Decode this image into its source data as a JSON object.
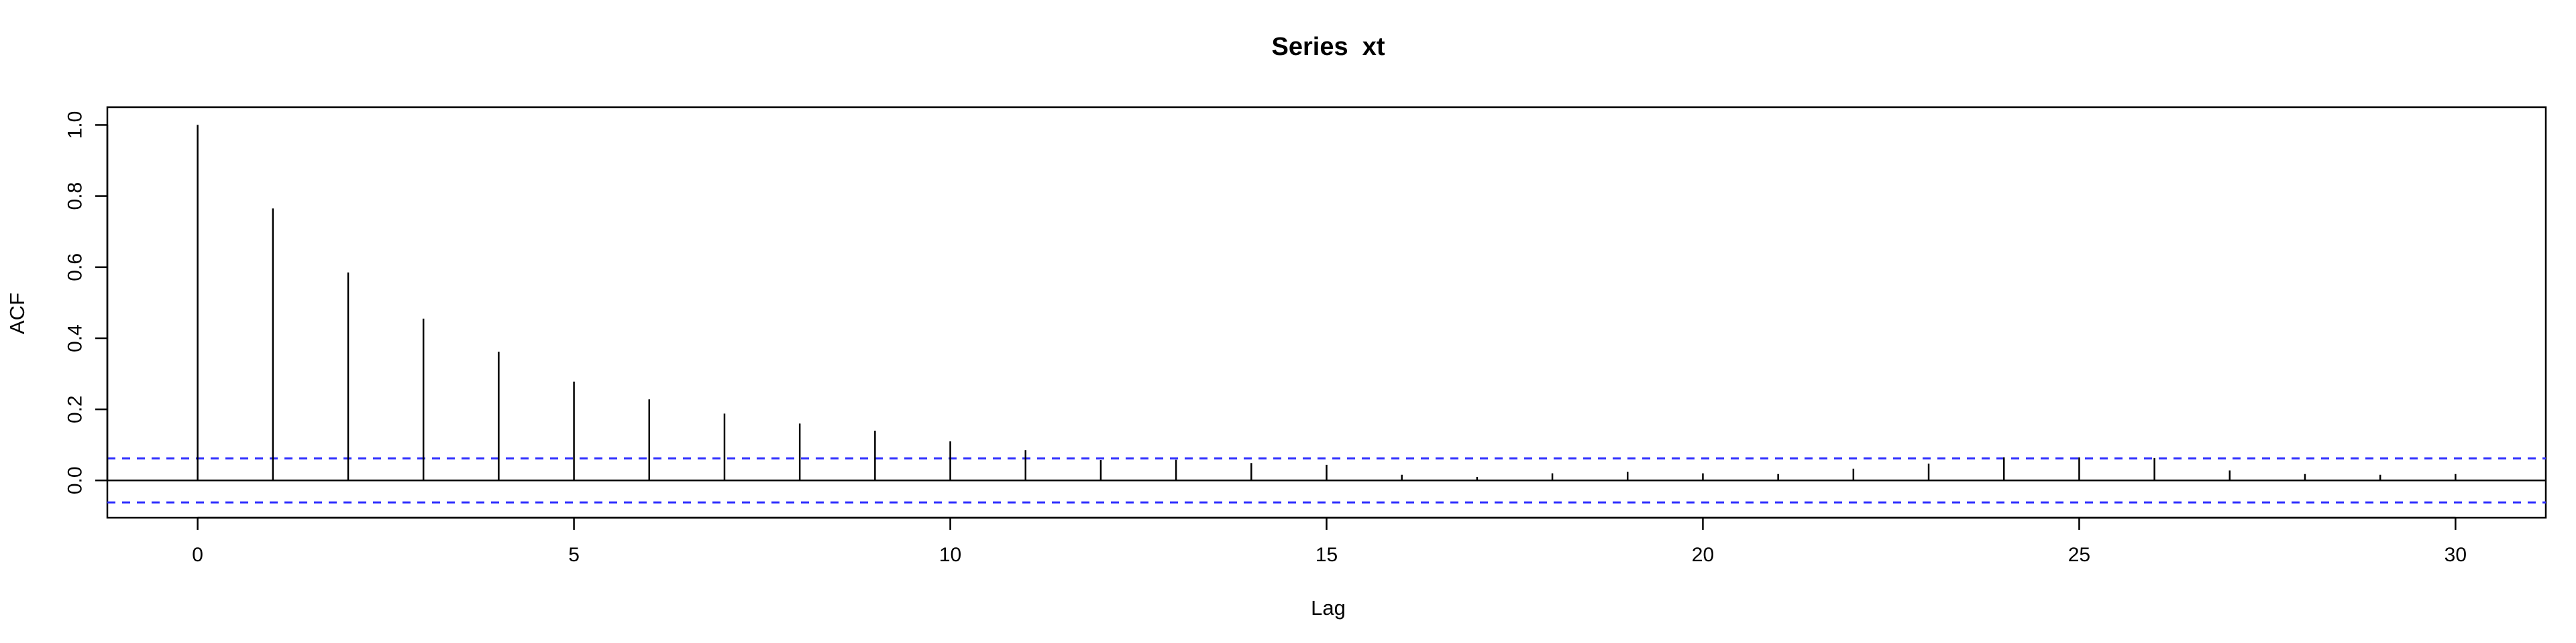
{
  "chart_data": {
    "type": "bar",
    "title": "Series  xt",
    "xlabel": "Lag",
    "ylabel": "ACF",
    "x": [
      0,
      1,
      2,
      3,
      4,
      5,
      6,
      7,
      8,
      9,
      10,
      11,
      12,
      13,
      14,
      15,
      16,
      17,
      18,
      19,
      20,
      21,
      22,
      23,
      24,
      25,
      26,
      27,
      28,
      29,
      30
    ],
    "values": [
      1.0,
      0.765,
      0.585,
      0.455,
      0.362,
      0.278,
      0.228,
      0.188,
      0.16,
      0.14,
      0.11,
      0.085,
      0.057,
      0.058,
      0.049,
      0.044,
      0.016,
      0.01,
      0.02,
      0.024,
      0.02,
      0.018,
      0.033,
      0.047,
      0.065,
      0.065,
      0.063,
      0.028,
      0.018,
      0.016,
      0.018
    ],
    "xlim": [
      -1.2,
      31.2
    ],
    "ylim": [
      -0.105,
      1.05
    ],
    "xticks": [
      0,
      5,
      10,
      15,
      20,
      25,
      30
    ],
    "xtick_labels": [
      "0",
      "5",
      "10",
      "15",
      "20",
      "25",
      "30"
    ],
    "yticks": [
      0.0,
      0.2,
      0.4,
      0.6,
      0.8,
      1.0
    ],
    "ytick_labels": [
      "0.0",
      "0.2",
      "0.4",
      "0.6",
      "0.8",
      "1.0"
    ],
    "confidence_band": [
      0.062,
      -0.062
    ],
    "grid": false,
    "colors": {
      "bars": "#000000",
      "band": "#2c2cff",
      "zero": "#000000"
    }
  }
}
